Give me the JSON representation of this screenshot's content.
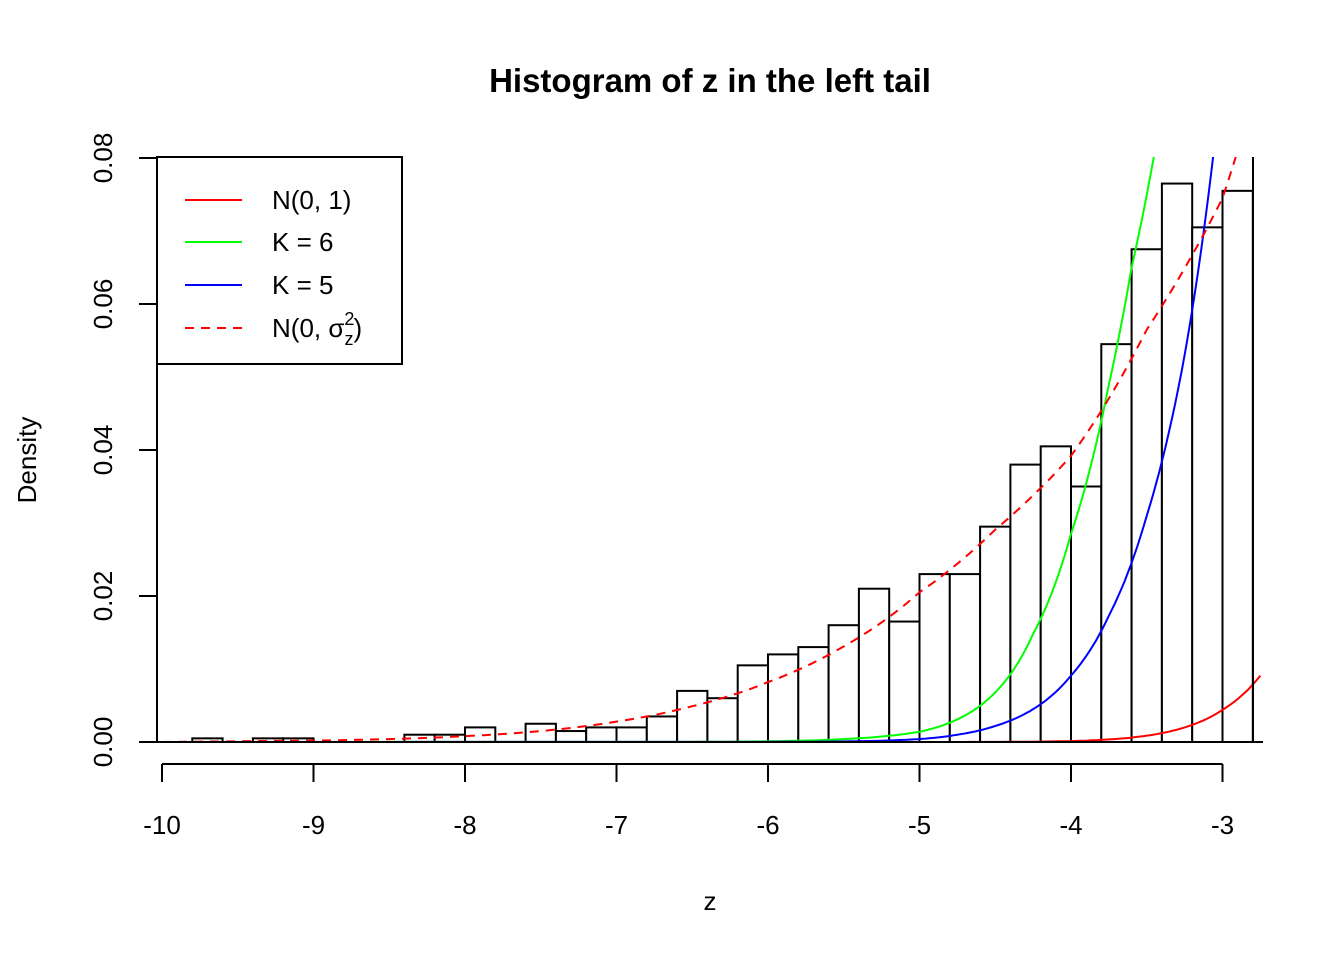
{
  "chart_data": {
    "type": "bar",
    "title": "Histogram of z in the left tail",
    "xlabel": "z",
    "ylabel": "Density",
    "xlim": [
      -10,
      -2.75
    ],
    "ylim": [
      0,
      0.08
    ],
    "x_ticks": [
      "-10",
      "-9",
      "-8",
      "-7",
      "-6",
      "-5",
      "-4",
      "-3"
    ],
    "y_ticks": [
      "0.00",
      "0.02",
      "0.04",
      "0.06",
      "0.08"
    ],
    "bin_width": 0.2,
    "bin_starts": [
      -9.8,
      -9.6,
      -9.4,
      -9.2,
      -9.0,
      -8.8,
      -8.6,
      -8.4,
      -8.2,
      -8.0,
      -7.8,
      -7.6,
      -7.4,
      -7.2,
      -7.0,
      -6.8,
      -6.6,
      -6.4,
      -6.2,
      -6.0,
      -5.8,
      -5.6,
      -5.4,
      -5.2,
      -5.0,
      -4.8,
      -4.6,
      -4.4,
      -4.2,
      -4.0,
      -3.8,
      -3.6,
      -3.4,
      -3.2,
      -3.0
    ],
    "densities": [
      0.0005,
      0.0,
      0.0005,
      0.0005,
      0.0,
      0.0,
      0.0,
      0.001,
      0.001,
      0.002,
      0.0,
      0.0025,
      0.0015,
      0.002,
      0.002,
      0.0035,
      0.007,
      0.006,
      0.0105,
      0.012,
      0.013,
      0.016,
      0.021,
      0.0165,
      0.023,
      0.023,
      0.0295,
      0.038,
      0.0405,
      0.035,
      0.0545,
      0.0675,
      0.0765,
      0.0705,
      0.0755
    ],
    "series": [
      {
        "name": "N(0, 1)",
        "color": "#ff0000",
        "style": "solid",
        "x": [
          -10,
          -5,
          -4.5,
          -4,
          -3.75,
          -3.5,
          -3.25,
          -3,
          -2.75
        ],
        "y": [
          0,
          1.5e-06,
          1.6e-05,
          0.00013,
          0.00035,
          0.00087,
          0.002,
          0.0044,
          0.0091
        ]
      },
      {
        "name": "K = 6",
        "color": "#00ff00",
        "style": "solid",
        "x": [
          -10,
          -6.5,
          -6,
          -5.5,
          -5,
          -4.75,
          -4.5,
          -4.25,
          -4,
          -3.75,
          -3.6,
          -3.45
        ],
        "y": [
          0,
          2e-05,
          0.0001,
          0.0004,
          0.0014,
          0.0031,
          0.0068,
          0.0148,
          0.0285,
          0.049,
          0.065,
          0.0805
        ]
      },
      {
        "name": "K = 5",
        "color": "#0000ff",
        "style": "solid",
        "x": [
          -10,
          -6,
          -5.5,
          -5,
          -4.75,
          -4.5,
          -4.25,
          -4,
          -3.75,
          -3.5,
          -3.25,
          -3.06
        ],
        "y": [
          0,
          2e-05,
          8e-05,
          0.0004,
          0.001,
          0.0022,
          0.0045,
          0.0091,
          0.0173,
          0.031,
          0.053,
          0.0805
        ]
      },
      {
        "name": "N(0, σ_z²)",
        "color": "#ff0000",
        "style": "dashed",
        "x": [
          -10,
          -9,
          -8.5,
          -8,
          -7.5,
          -7,
          -6.5,
          -6,
          -5.5,
          -5,
          -4.5,
          -4,
          -3.5,
          -3,
          -2.9
        ],
        "y": [
          0,
          0.0002,
          0.0004,
          0.0008,
          0.0015,
          0.0028,
          0.0049,
          0.0082,
          0.0131,
          0.0205,
          0.0291,
          0.0392,
          0.0565,
          0.0745,
          0.081
        ]
      }
    ],
    "legend": {
      "position": "top-left",
      "entries": [
        {
          "label": "N(0, 1)",
          "color": "#ff0000",
          "style": "solid"
        },
        {
          "label": "K = 6",
          "color": "#00ff00",
          "style": "solid"
        },
        {
          "label": "K = 5",
          "color": "#0000ff",
          "style": "solid"
        },
        {
          "label_prefix": "N",
          "label_inner": "0, σ",
          "label_sub": "z",
          "label_sup": "2",
          "color": "#ff0000",
          "style": "dashed"
        }
      ]
    },
    "grid": false
  }
}
